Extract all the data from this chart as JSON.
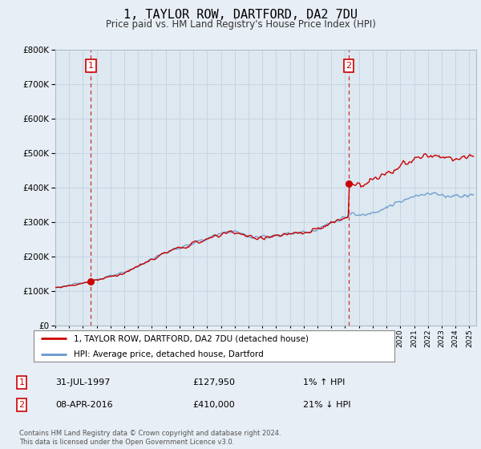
{
  "title": "1, TAYLOR ROW, DARTFORD, DA2 7DU",
  "subtitle": "Price paid vs. HM Land Registry's House Price Index (HPI)",
  "ylim": [
    0,
    800000
  ],
  "xlim_start": 1995.0,
  "xlim_end": 2025.5,
  "legend_line1": "1, TAYLOR ROW, DARTFORD, DA2 7DU (detached house)",
  "legend_line2": "HPI: Average price, detached house, Dartford",
  "annotation1_label": "1",
  "annotation1_date": "31-JUL-1997",
  "annotation1_price": "£127,950",
  "annotation1_hpi": "1% ↑ HPI",
  "annotation2_label": "2",
  "annotation2_date": "08-APR-2016",
  "annotation2_price": "£410,000",
  "annotation2_hpi": "21% ↓ HPI",
  "line_color_red": "#cc0000",
  "line_color_blue": "#6699cc",
  "dashed_color": "#cc0000",
  "bg_color": "#e8eef5",
  "plot_bg": "#dde8f0",
  "footer": "Contains HM Land Registry data © Crown copyright and database right 2024.\nThis data is licensed under the Open Government Licence v3.0.",
  "sale1_x": 1997.58,
  "sale1_y": 127950,
  "sale2_x": 2016.27,
  "sale2_y": 410000
}
